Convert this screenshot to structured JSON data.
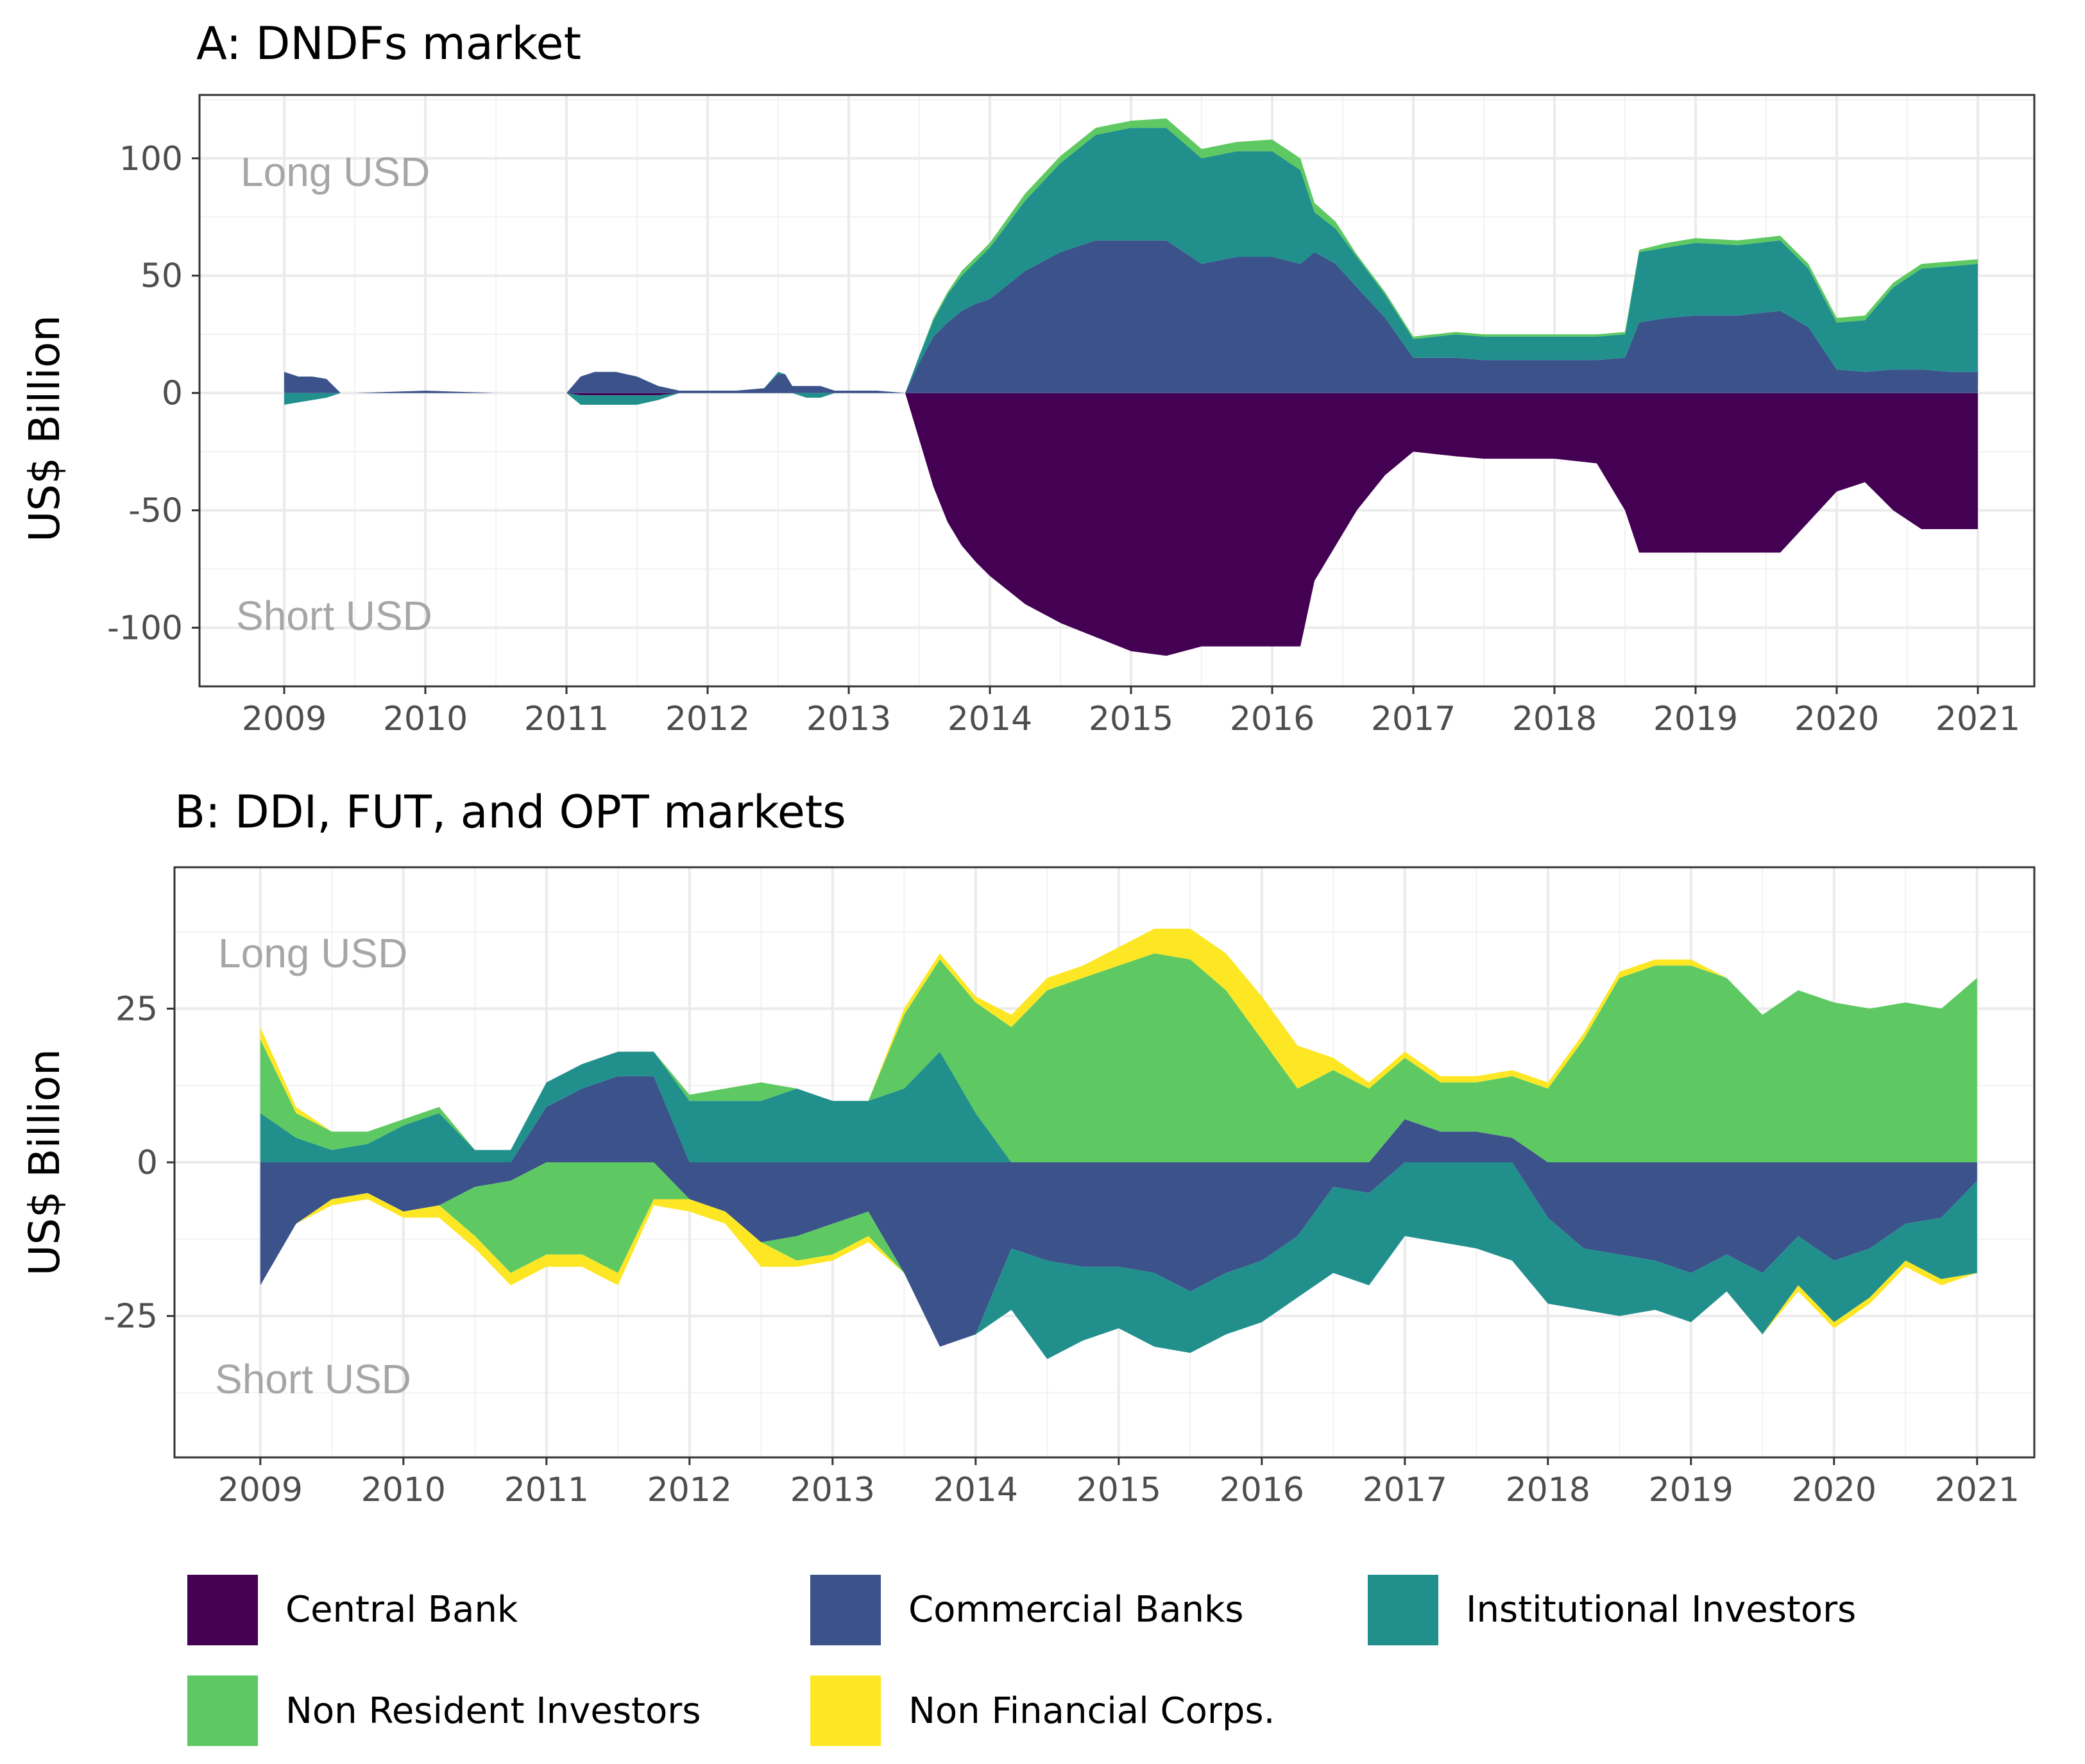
{
  "chart_data": [
    {
      "type": "area",
      "title": "A: DNDFs market",
      "xlabel": "",
      "ylabel": "US$ Billion",
      "x_ticks": [
        "2009",
        "2010",
        "2011",
        "2012",
        "2013",
        "2014",
        "2015",
        "2016",
        "2017",
        "2018",
        "2019",
        "2020",
        "2021"
      ],
      "y_ticks": [
        100,
        50,
        0,
        -50,
        -100
      ],
      "y_tick_labels": [
        "100",
        "50",
        "0",
        "-50",
        "-100"
      ],
      "xlim": [
        2008.4,
        2021.4
      ],
      "ylim": [
        -125,
        127
      ],
      "grid": true,
      "annotations": {
        "long": "Long USD",
        "short": "Short USD"
      },
      "x": [
        2009.0,
        2009.1,
        2009.2,
        2009.3,
        2009.4,
        2009.5,
        2010.0,
        2010.5,
        2011.0,
        2011.1,
        2011.2,
        2011.35,
        2011.5,
        2011.65,
        2011.8,
        2011.9,
        2012.0,
        2012.2,
        2012.4,
        2012.5,
        2012.55,
        2012.6,
        2012.7,
        2012.8,
        2012.9,
        2013.0,
        2013.2,
        2013.4,
        2013.5,
        2013.6,
        2013.7,
        2013.8,
        2013.9,
        2014.0,
        2014.25,
        2014.5,
        2014.75,
        2015.0,
        2015.25,
        2015.5,
        2015.75,
        2016.0,
        2016.2,
        2016.3,
        2016.45,
        2016.6,
        2016.8,
        2017.0,
        2017.3,
        2017.5,
        2017.7,
        2018.0,
        2018.3,
        2018.5,
        2018.6,
        2018.8,
        2019.0,
        2019.3,
        2019.6,
        2019.8,
        2020.0,
        2020.2,
        2020.4,
        2020.6,
        2020.8,
        2021.0
      ],
      "series": [
        {
          "name": "Central Bank",
          "color": "#440154",
          "values": [
            0,
            0,
            0,
            0,
            0,
            0,
            0,
            0,
            0,
            -1,
            -1,
            -1,
            -1,
            -1,
            0,
            0,
            0,
            0,
            0,
            0,
            0,
            0,
            0,
            0,
            0,
            0,
            0,
            0,
            -20,
            -40,
            -55,
            -65,
            -72,
            -78,
            -90,
            -98,
            -104,
            -110,
            -112,
            -108,
            -108,
            -108,
            -108,
            -80,
            -65,
            -50,
            -35,
            -25,
            -27,
            -28,
            -28,
            -28,
            -30,
            -50,
            -68,
            -68,
            -68,
            -68,
            -68,
            -55,
            -42,
            -38,
            -50,
            -58,
            -58,
            -58
          ]
        },
        {
          "name": "Commercial Banks",
          "color": "#3b528b",
          "values": [
            9,
            7,
            7,
            6,
            0,
            0,
            1,
            0,
            0,
            7,
            9,
            9,
            7,
            3,
            1,
            1,
            1,
            1,
            2,
            8,
            8,
            3,
            3,
            3,
            1,
            1,
            1,
            0,
            13,
            24,
            30,
            35,
            38,
            40,
            52,
            60,
            65,
            65,
            65,
            55,
            58,
            58,
            55,
            60,
            55,
            45,
            32,
            15,
            15,
            14,
            14,
            14,
            14,
            15,
            30,
            32,
            33,
            33,
            35,
            28,
            10,
            9,
            10,
            10,
            9,
            9
          ]
        },
        {
          "name": "Institutional Investors",
          "color": "#21908d",
          "values": [
            -5,
            -4,
            -3,
            -2,
            0,
            0,
            0,
            0,
            0,
            -4,
            -4,
            -4,
            -4,
            -2,
            0,
            0,
            0,
            0,
            0,
            1,
            0,
            0,
            -2,
            -2,
            0,
            0,
            0,
            0,
            3,
            7,
            12,
            15,
            18,
            22,
            30,
            38,
            45,
            48,
            48,
            45,
            45,
            45,
            40,
            17,
            15,
            13,
            10,
            8,
            10,
            10,
            10,
            10,
            10,
            10,
            30,
            30,
            31,
            30,
            30,
            25,
            20,
            22,
            35,
            43,
            45,
            46
          ]
        },
        {
          "name": "Non Resident Investors",
          "color": "#5ec962",
          "values": [
            0,
            0,
            0,
            0,
            0,
            0,
            0,
            0,
            0,
            0,
            0,
            0,
            0,
            0,
            0,
            0,
            0,
            0,
            0,
            0,
            0,
            0,
            0,
            0,
            0,
            0,
            0,
            0,
            0,
            1,
            1,
            2,
            2,
            2,
            3,
            3,
            3,
            3,
            4,
            4,
            4,
            5,
            5,
            4,
            3,
            1,
            1,
            1,
            1,
            1,
            1,
            1,
            1,
            1,
            1,
            2,
            2,
            2,
            2,
            2,
            2,
            2,
            2,
            2,
            2,
            2
          ]
        },
        {
          "name": "Non Financial Corps.",
          "color": "#fde725",
          "values": [
            0,
            0,
            0,
            0,
            0,
            0,
            0,
            0,
            0,
            0,
            0,
            0,
            0,
            0,
            0,
            0,
            0,
            0,
            0,
            0,
            0,
            0,
            0,
            0,
            0,
            0,
            0,
            0,
            0,
            0,
            0,
            0,
            0,
            0,
            0,
            0,
            0,
            0,
            0,
            0,
            0,
            0,
            0,
            0,
            0,
            0,
            0,
            0,
            0,
            0,
            0,
            0,
            0,
            0,
            0,
            0,
            0,
            0,
            0,
            0,
            0,
            0,
            0,
            0,
            0,
            0
          ]
        }
      ]
    },
    {
      "type": "area",
      "title": "B: DDI, FUT, and OPT markets",
      "xlabel": "",
      "ylabel": "US$ Billion",
      "x_ticks": [
        "2009",
        "2010",
        "2011",
        "2012",
        "2013",
        "2014",
        "2015",
        "2016",
        "2017",
        "2018",
        "2019",
        "2020",
        "2021"
      ],
      "y_ticks": [
        25,
        0,
        -25
      ],
      "y_tick_labels": [
        "25",
        "0",
        "-25"
      ],
      "xlim": [
        2008.4,
        2021.4
      ],
      "ylim": [
        -48,
        48
      ],
      "grid": true,
      "annotations": {
        "long": "Long USD",
        "short": "Short USD"
      },
      "x": [
        2009.0,
        2009.25,
        2009.5,
        2009.75,
        2010.0,
        2010.25,
        2010.5,
        2010.75,
        2011.0,
        2011.25,
        2011.5,
        2011.75,
        2012.0,
        2012.25,
        2012.5,
        2012.75,
        2013.0,
        2013.25,
        2013.5,
        2013.75,
        2014.0,
        2014.25,
        2014.5,
        2014.75,
        2015.0,
        2015.25,
        2015.5,
        2015.75,
        2016.0,
        2016.25,
        2016.5,
        2016.75,
        2017.0,
        2017.25,
        2017.5,
        2017.75,
        2018.0,
        2018.25,
        2018.5,
        2018.75,
        2019.0,
        2019.25,
        2019.5,
        2019.75,
        2020.0,
        2020.25,
        2020.5,
        2020.75,
        2021.0
      ],
      "series": [
        {
          "name": "Central Bank",
          "color": "#440154",
          "values": [
            0,
            0,
            0,
            0,
            0,
            0,
            0,
            0,
            0,
            0,
            0,
            0,
            0,
            0,
            0,
            0,
            0,
            0,
            0,
            0,
            0,
            0,
            0,
            0,
            0,
            0,
            0,
            0,
            0,
            0,
            0,
            0,
            0,
            0,
            0,
            0,
            0,
            0,
            0,
            0,
            0,
            0,
            0,
            0,
            0,
            0,
            0,
            0,
            0
          ]
        },
        {
          "name": "Commercial Banks",
          "color": "#3b528b",
          "values": [
            -20,
            -10,
            -6,
            -5,
            -8,
            -7,
            -4,
            -3,
            9,
            12,
            14,
            14,
            -6,
            -8,
            -13,
            -12,
            -10,
            -8,
            -18,
            -30,
            -28,
            -14,
            -16,
            -17,
            -17,
            -18,
            -21,
            -18,
            -16,
            -12,
            -4,
            -5,
            7,
            5,
            5,
            4,
            -9,
            -14,
            -15,
            -16,
            -18,
            -15,
            -18,
            -12,
            -16,
            -14,
            -10,
            -9,
            -3
          ]
        },
        {
          "name": "Institutional Investors",
          "color": "#21908d",
          "values": [
            8,
            4,
            2,
            3,
            6,
            8,
            2,
            2,
            4,
            4,
            4,
            4,
            10,
            10,
            10,
            12,
            10,
            10,
            12,
            18,
            8,
            -10,
            -16,
            -12,
            -10,
            -12,
            -10,
            -10,
            -10,
            -10,
            -14,
            -15,
            -12,
            -13,
            -14,
            -16,
            -14,
            -10,
            -10,
            -8,
            -8,
            -6,
            -10,
            -8,
            -10,
            -8,
            -6,
            -10,
            -15
          ]
        },
        {
          "name": "Non Resident Investors",
          "color": "#5ec962",
          "values": [
            12,
            4,
            3,
            2,
            1,
            1,
            -8,
            -15,
            -15,
            -15,
            -18,
            -6,
            1,
            2,
            3,
            -4,
            -5,
            -4,
            12,
            15,
            18,
            22,
            28,
            30,
            32,
            34,
            33,
            28,
            20,
            12,
            15,
            12,
            10,
            8,
            8,
            10,
            12,
            20,
            30,
            32,
            32,
            30,
            24,
            28,
            26,
            25,
            26,
            25,
            30
          ]
        },
        {
          "name": "Non Financial Corps.",
          "color": "#fde725",
          "values": [
            2,
            1,
            -1,
            -1,
            -1,
            -2,
            -2,
            -2,
            -2,
            -2,
            -2,
            -1,
            -2,
            -2,
            -4,
            -1,
            -1,
            -1,
            1,
            1,
            1,
            2,
            2,
            2,
            3,
            4,
            5,
            6,
            7,
            7,
            2,
            1,
            1,
            1,
            1,
            1,
            1,
            1,
            1,
            1,
            1,
            0,
            0,
            -1,
            -1,
            -1,
            -1,
            -1,
            0
          ]
        }
      ]
    }
  ],
  "legend": {
    "items": [
      {
        "label": "Central Bank",
        "color": "#440154"
      },
      {
        "label": "Commercial Banks",
        "color": "#3b528b"
      },
      {
        "label": "Institutional Investors",
        "color": "#21908d"
      },
      {
        "label": "Non Resident Investors",
        "color": "#5ec962"
      },
      {
        "label": "Non Financial Corps.",
        "color": "#fde725"
      }
    ]
  }
}
